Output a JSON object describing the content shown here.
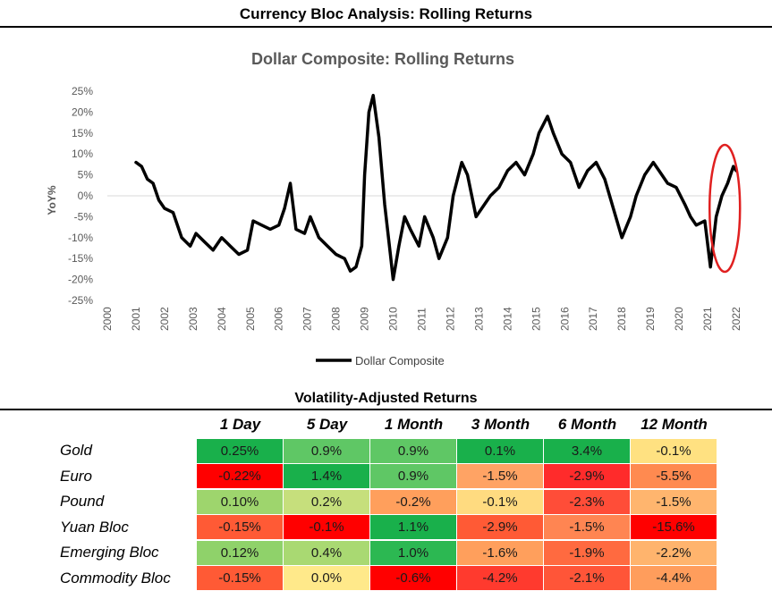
{
  "page": {
    "title": "Currency Bloc Analysis: Rolling Returns"
  },
  "chart_data": {
    "type": "line",
    "title": "Dollar Composite: Rolling Returns",
    "xlabel": "",
    "ylabel": "YoY%",
    "xlim": [
      2000,
      2022
    ],
    "ylim": [
      -25,
      25
    ],
    "x_ticks": [
      "2000",
      "2001",
      "2002",
      "2003",
      "2004",
      "2005",
      "2006",
      "2007",
      "2008",
      "2009",
      "2010",
      "2011",
      "2012",
      "2013",
      "2014",
      "2015",
      "2016",
      "2017",
      "2018",
      "2019",
      "2020",
      "2021",
      "2022"
    ],
    "y_ticks": [
      "25%",
      "20%",
      "15%",
      "10%",
      "5%",
      "0%",
      "-5%",
      "-10%",
      "-15%",
      "-20%",
      "-25%"
    ],
    "legend": "bottom-center",
    "series": [
      {
        "name": "Dollar Composite",
        "color": "#000000",
        "x": [
          2001.0,
          2001.2,
          2001.4,
          2001.6,
          2001.8,
          2002.0,
          2002.3,
          2002.6,
          2002.9,
          2003.1,
          2003.4,
          2003.7,
          2004.0,
          2004.3,
          2004.6,
          2004.9,
          2005.1,
          2005.4,
          2005.7,
          2006.0,
          2006.2,
          2006.4,
          2006.6,
          2006.9,
          2007.1,
          2007.4,
          2007.7,
          2008.0,
          2008.3,
          2008.5,
          2008.7,
          2008.9,
          2009.0,
          2009.15,
          2009.3,
          2009.5,
          2009.7,
          2009.9,
          2010.0,
          2010.2,
          2010.4,
          2010.6,
          2010.9,
          2011.1,
          2011.4,
          2011.6,
          2011.9,
          2012.1,
          2012.4,
          2012.6,
          2012.9,
          2013.1,
          2013.4,
          2013.7,
          2014.0,
          2014.3,
          2014.6,
          2014.9,
          2015.1,
          2015.4,
          2015.6,
          2015.9,
          2016.2,
          2016.5,
          2016.8,
          2017.1,
          2017.4,
          2017.7,
          2018.0,
          2018.3,
          2018.5,
          2018.8,
          2019.1,
          2019.3,
          2019.6,
          2019.9,
          2020.2,
          2020.4,
          2020.6,
          2020.9,
          2021.1,
          2021.3,
          2021.5,
          2021.7,
          2021.9,
          2022.0
        ],
        "y": [
          8,
          7,
          4,
          3,
          -1,
          -3,
          -4,
          -10,
          -12,
          -9,
          -11,
          -13,
          -10,
          -12,
          -14,
          -13,
          -6,
          -7,
          -8,
          -7,
          -3,
          3,
          -8,
          -9,
          -5,
          -10,
          -12,
          -14,
          -15,
          -18,
          -17,
          -12,
          5,
          20,
          24,
          14,
          -2,
          -14,
          -20,
          -12,
          -5,
          -8,
          -12,
          -5,
          -10,
          -15,
          -10,
          0,
          8,
          5,
          -5,
          -3,
          0,
          2,
          6,
          8,
          5,
          10,
          15,
          19,
          15,
          10,
          8,
          2,
          6,
          8,
          4,
          -3,
          -10,
          -5,
          0,
          5,
          8,
          6,
          3,
          2,
          -2,
          -5,
          -7,
          -6,
          -17,
          -5,
          0,
          3,
          7,
          6
        ]
      }
    ],
    "annotation": {
      "type": "ellipse",
      "color": "#e02020",
      "note": "red circle highlighting 2021-2022"
    }
  },
  "table": {
    "title": "Volatility-Adjusted Returns",
    "columns": [
      "1 Day",
      "5 Day",
      "1 Month",
      "3 Month",
      "6 Month",
      "12 Month"
    ],
    "rows": [
      {
        "label": "Gold",
        "values": [
          "0.25%",
          "0.9%",
          "0.9%",
          "0.1%",
          "3.4%",
          "-0.1%"
        ],
        "colors": [
          "#19b04b",
          "#5fc765",
          "#5fc765",
          "#19b04b",
          "#19b04b",
          "#ffe181"
        ]
      },
      {
        "label": "Euro",
        "values": [
          "-0.22%",
          "1.4%",
          "0.9%",
          "-1.5%",
          "-2.9%",
          "-5.5%"
        ],
        "colors": [
          "#ff0000",
          "#19b04b",
          "#5fc765",
          "#ffa364",
          "#ff2b2b",
          "#ff8a50"
        ]
      },
      {
        "label": "Pound",
        "values": [
          "0.10%",
          "0.2%",
          "-0.2%",
          "-0.1%",
          "-2.3%",
          "-1.5%"
        ],
        "colors": [
          "#9ed56d",
          "#c6df7c",
          "#ff9f5c",
          "#ffdb80",
          "#ff4d38",
          "#ffb56e"
        ]
      },
      {
        "label": "Yuan Bloc",
        "values": [
          "-0.15%",
          "-0.1%",
          "1.1%",
          "-2.9%",
          "-1.5%",
          "-15.6%"
        ],
        "colors": [
          "#ff5a35",
          "#ff0000",
          "#19b04b",
          "#ff5a35",
          "#ff8552",
          "#ff0000"
        ]
      },
      {
        "label": "Emerging Bloc",
        "values": [
          "0.12%",
          "0.4%",
          "1.0%",
          "-1.6%",
          "-1.9%",
          "-2.2%"
        ],
        "colors": [
          "#8fd26a",
          "#a9d972",
          "#2cb852",
          "#ff9f5c",
          "#ff6a40",
          "#ffb46d"
        ]
      },
      {
        "label": "Commodity Bloc",
        "values": [
          "-0.15%",
          "0.0%",
          "-0.6%",
          "-4.2%",
          "-2.1%",
          "-4.4%"
        ],
        "colors": [
          "#ff5a35",
          "#ffe98a",
          "#ff0000",
          "#ff3a2e",
          "#ff5538",
          "#ff9d5c"
        ]
      }
    ]
  }
}
